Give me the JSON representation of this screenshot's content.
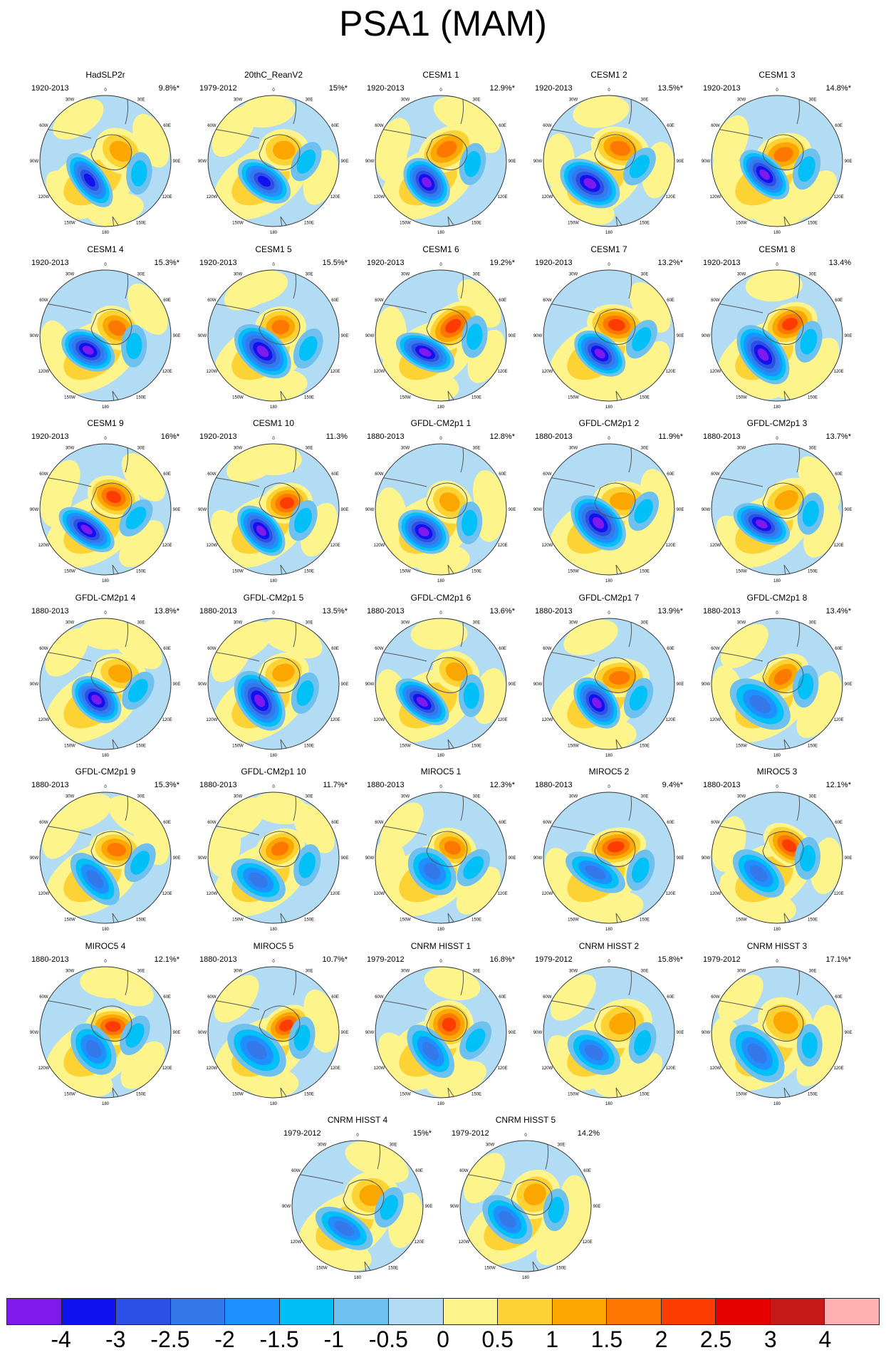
{
  "title": "PSA1 (MAM)",
  "longitude_labels": [
    "0",
    "30E",
    "60E",
    "90E",
    "120E",
    "150E",
    "180",
    "150W",
    "120W",
    "90W",
    "60W",
    "30W"
  ],
  "colorbar": {
    "labels": [
      "-4",
      "-3",
      "-2.5",
      "-2",
      "-1.5",
      "-1",
      "-0.5",
      "0",
      "0.5",
      "1",
      "1.5",
      "2",
      "2.5",
      "3",
      "4"
    ],
    "colors": [
      "#7f1aee",
      "#1212ee",
      "#2c4fe6",
      "#3478ea",
      "#1e90ff",
      "#00c0f8",
      "#6ec0ee",
      "#b2dcf4",
      "#fdf58c",
      "#fcd235",
      "#fca600",
      "#fc7800",
      "#fc3c00",
      "#e60000",
      "#c81919",
      "#ffb0b0"
    ]
  },
  "panels": [
    {
      "name": "HadSLP2r",
      "period": "1920-2013",
      "pct": "9.8%*"
    },
    {
      "name": "20thC_ReanV2",
      "period": "1979-2012",
      "pct": "15%*"
    },
    {
      "name": "CESM1 1",
      "period": "1920-2013",
      "pct": "12.9%*"
    },
    {
      "name": "CESM1 2",
      "period": "1920-2013",
      "pct": "13.5%*"
    },
    {
      "name": "CESM1 3",
      "period": "1920-2013",
      "pct": "14.8%*"
    },
    {
      "name": "CESM1 4",
      "period": "1920-2013",
      "pct": "15.3%*"
    },
    {
      "name": "CESM1 5",
      "period": "1920-2013",
      "pct": "15.5%*"
    },
    {
      "name": "CESM1 6",
      "period": "1920-2013",
      "pct": "19.2%*"
    },
    {
      "name": "CESM1 7",
      "period": "1920-2013",
      "pct": "13.2%*"
    },
    {
      "name": "CESM1 8",
      "period": "1920-2013",
      "pct": "13.4%"
    },
    {
      "name": "CESM1 9",
      "period": "1920-2013",
      "pct": "16%*"
    },
    {
      "name": "CESM1 10",
      "period": "1920-2013",
      "pct": "11.3%"
    },
    {
      "name": "GFDL-CM2p1 1",
      "period": "1880-2013",
      "pct": "12.8%*"
    },
    {
      "name": "GFDL-CM2p1 2",
      "period": "1880-2013",
      "pct": "11.9%*"
    },
    {
      "name": "GFDL-CM2p1 3",
      "period": "1880-2013",
      "pct": "13.7%*"
    },
    {
      "name": "GFDL-CM2p1 4",
      "period": "1880-2013",
      "pct": "13.8%*"
    },
    {
      "name": "GFDL-CM2p1 5",
      "period": "1880-2013",
      "pct": "13.5%*"
    },
    {
      "name": "GFDL-CM2p1 6",
      "period": "1880-2013",
      "pct": "13.6%*"
    },
    {
      "name": "GFDL-CM2p1 7",
      "period": "1880-2013",
      "pct": "13.9%*"
    },
    {
      "name": "GFDL-CM2p1 8",
      "period": "1880-2013",
      "pct": "13.4%*"
    },
    {
      "name": "GFDL-CM2p1 9",
      "period": "1880-2013",
      "pct": "15.3%*"
    },
    {
      "name": "GFDL-CM2p1 10",
      "period": "1880-2013",
      "pct": "11.7%*"
    },
    {
      "name": "MIROC5 1",
      "period": "1880-2013",
      "pct": "12.3%*"
    },
    {
      "name": "MIROC5 2",
      "period": "1880-2013",
      "pct": "9.4%*"
    },
    {
      "name": "MIROC5 3",
      "period": "1880-2013",
      "pct": "12.1%*"
    },
    {
      "name": "MIROC5 4",
      "period": "1880-2013",
      "pct": "12.1%*"
    },
    {
      "name": "MIROC5 5",
      "period": "1880-2013",
      "pct": "10.7%*"
    },
    {
      "name": "CNRM HISST 1",
      "period": "1979-2012",
      "pct": "16.8%*"
    },
    {
      "name": "CNRM HISST 2",
      "period": "1979-2012",
      "pct": "15.8%*"
    },
    {
      "name": "CNRM HISST 3",
      "period": "1979-2012",
      "pct": "17.1%*"
    },
    {
      "name": "CNRM HISST 4",
      "period": "1979-2012",
      "pct": "15%*"
    },
    {
      "name": "CNRM HISST 5",
      "period": "1979-2012",
      "pct": "14.2%"
    }
  ]
}
